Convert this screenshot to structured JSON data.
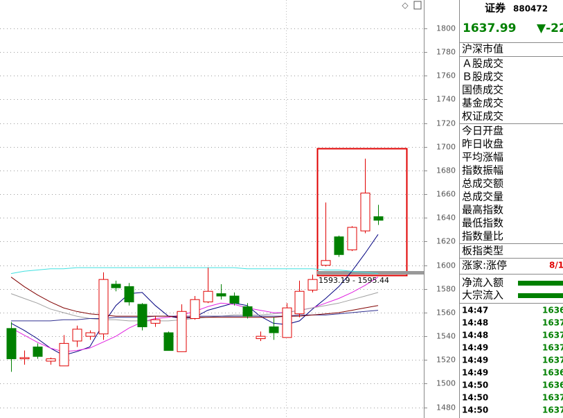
{
  "chart_data": {
    "type": "candlestick",
    "open": [
      1546.6,
      1521,
      1531,
      1519,
      1515,
      1536,
      1540,
      1542,
      1584,
      1582,
      1567,
      1551,
      1543,
      1527,
      1555,
      1569,
      1576,
      1574,
      1565,
      1538,
      1548,
      1539,
      1559,
      1579,
      1600,
      1624,
      1613,
      1629,
      1641
    ],
    "close": [
      1521,
      1522,
      1523,
      1521,
      1534,
      1546,
      1543,
      1588,
      1581,
      1569,
      1548,
      1554,
      1528,
      1561,
      1571,
      1578,
      1574,
      1568,
      1557,
      1540,
      1543,
      1564,
      1578,
      1588,
      1604,
      1609,
      1632,
      1661,
      1638
    ],
    "high": [
      1552,
      1528,
      1534,
      1522,
      1541,
      1549,
      1545,
      1594,
      1587,
      1585,
      1568,
      1557,
      1544,
      1567,
      1574,
      1598,
      1584,
      1577,
      1568,
      1544,
      1556,
      1568,
      1587,
      1592,
      1653,
      1625,
      1633,
      1690,
      1651
    ],
    "low": [
      1510,
      1516,
      1521,
      1516,
      1515,
      1531,
      1537,
      1537,
      1578,
      1566,
      1545,
      1548,
      1528,
      1527,
      1554,
      1568,
      1571,
      1566,
      1555,
      1536,
      1537,
      1539,
      1556,
      1577,
      1599,
      1607,
      1612,
      1627,
      1634
    ],
    "up_color": "#e00000",
    "down_color": "#008000",
    "ma_lines": [
      {
        "color": "#000080",
        "values": [
          1551,
          1545,
          1538,
          1530,
          1524,
          1527,
          1531,
          1550,
          1566,
          1576,
          1577,
          1566,
          1557,
          1555,
          1556,
          1562,
          1565,
          1568,
          1566,
          1557,
          1551,
          1550,
          1553,
          1563,
          1572,
          1582,
          1595,
          1610,
          1626
        ]
      },
      {
        "color": "#e020e0",
        "values": [
          1547,
          1541,
          1535,
          1530,
          1527,
          1528,
          1530,
          1535,
          1540,
          1547,
          1552,
          1555,
          1556,
          1558,
          1561,
          1565,
          1568,
          1567,
          1564,
          1562,
          1560,
          1560,
          1562,
          1564,
          1568,
          1572,
          1577,
          1583,
          1590
        ]
      },
      {
        "color": "#a0a0a0",
        "values": [
          1576,
          1572,
          1568,
          1563,
          1560,
          1557,
          1555,
          1554,
          1554,
          1553,
          1553,
          1553,
          1553,
          1554,
          1555,
          1556,
          1557,
          1558,
          1558,
          1558,
          1559,
          1560,
          1562,
          1564,
          1566,
          1568,
          1571,
          1574,
          1577
        ]
      },
      {
        "color": "#303090",
        "values": [
          1553,
          1553,
          1553,
          1553,
          1554,
          1554,
          1555,
          1555,
          1556,
          1556,
          1556,
          1557,
          1557,
          1557,
          1557,
          1557,
          1557,
          1557,
          1557,
          1557,
          1557,
          1557,
          1558,
          1558,
          1558,
          1559,
          1560,
          1561,
          1562
        ]
      },
      {
        "color": "#800000",
        "values": [
          1590,
          1582,
          1575,
          1569,
          1564,
          1561,
          1559,
          1558,
          1557,
          1557,
          1557,
          1557,
          1557,
          1556,
          1556,
          1556,
          1556,
          1556,
          1556,
          1556,
          1556,
          1557,
          1557,
          1558,
          1559,
          1560,
          1562,
          1564,
          1566
        ]
      },
      {
        "color": "#40e0e0",
        "values": [
          1593,
          1595,
          1596,
          1597,
          1597,
          1598,
          1598,
          1598,
          1598,
          1598,
          1598,
          1598,
          1598,
          1598,
          1598,
          1598,
          1598,
          1598,
          1597,
          1597,
          1597,
          1597,
          1597,
          1597,
          1596,
          1596,
          1595,
          1594,
          1593
        ]
      }
    ],
    "annotation": "1593.19 - 1595.44",
    "ylim": [
      1471,
      1824
    ],
    "yticks": [
      1480,
      1500,
      1520,
      1540,
      1560,
      1580,
      1600,
      1620,
      1640,
      1660,
      1680,
      1700,
      1720,
      1740,
      1760,
      1780,
      1800
    ],
    "grid": true
  },
  "quote_panel": {
    "name": "证券",
    "code": "880472",
    "price": "1637.99",
    "change": "▼-22",
    "groups": [
      [
        "沪深市值"
      ],
      [
        "Ａ股成交",
        "Ｂ股成交",
        "国债成交",
        "基金成交",
        "权证成交"
      ],
      [
        "今日开盘",
        "昨日收盘",
        "平均涨幅",
        "指数振幅",
        "总成交额",
        "总成交量",
        "最高指数",
        "最低指数",
        "指数量比"
      ],
      [
        "板指类型"
      ]
    ],
    "advance_label": "涨家:涨停",
    "advance_value": "8/1",
    "flow_labels": [
      "净流入额",
      "大宗流入"
    ],
    "ticks": [
      [
        "14:47",
        "1636"
      ],
      [
        "14:48",
        "1637"
      ],
      [
        "14:48",
        "1637"
      ],
      [
        "14:49",
        "1637"
      ],
      [
        "14:49",
        "1637"
      ],
      [
        "14:49",
        "1636"
      ],
      [
        "14:50",
        "1636"
      ],
      [
        "14:50",
        "1637"
      ],
      [
        "14:50",
        "1637"
      ]
    ]
  }
}
